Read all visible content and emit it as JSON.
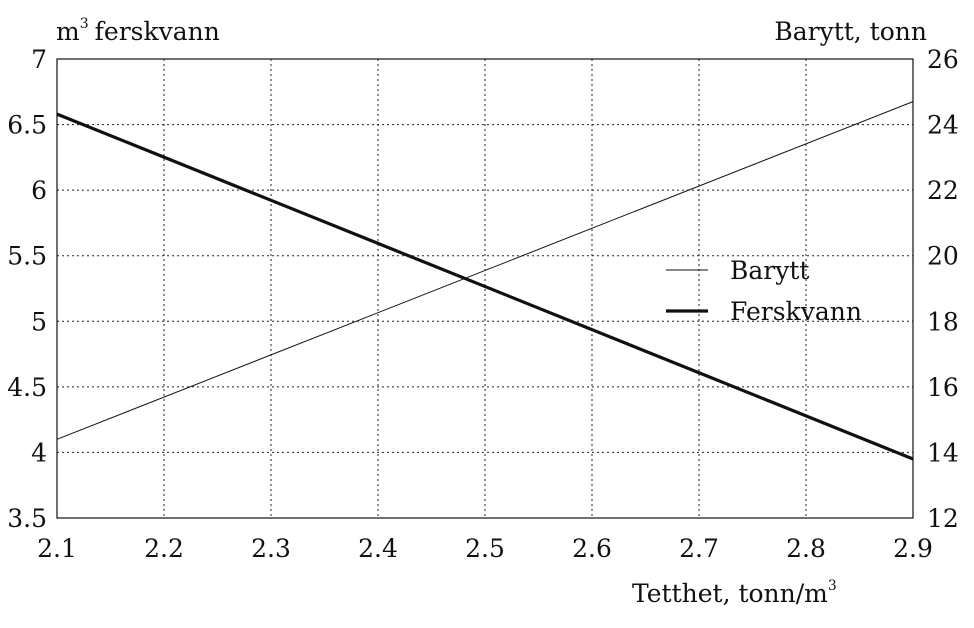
{
  "chart_data": {
    "type": "line",
    "xlabel": "Tetthet, tonn/m",
    "xlabel_superscript": "3",
    "ylabel_left": "ferskvann",
    "ylabel_left_prefix": "m",
    "ylabel_left_superscript": "3",
    "ylabel_right": "Barytt, tonn",
    "xlim": [
      2.1,
      2.9
    ],
    "ylim_left": [
      3.5,
      7
    ],
    "ylim_right": [
      12,
      26
    ],
    "x_ticks": [
      "2.1",
      "2.2",
      "2.3",
      "2.4",
      "2.5",
      "2.6",
      "2.7",
      "2.8",
      "2.9"
    ],
    "y_left_ticks": [
      "3.5",
      "4",
      "4.5",
      "5",
      "5.5",
      "6",
      "6.5",
      "7"
    ],
    "y_right_ticks": [
      "12",
      "14",
      "16",
      "18",
      "20",
      "22",
      "24",
      "26"
    ],
    "grid": true,
    "legend_position": "right-center",
    "series": [
      {
        "name": "Barytt",
        "axis": "right",
        "line_style": "thin",
        "color": "#111111",
        "x": [
          2.1,
          2.9
        ],
        "y": [
          14.4,
          24.7
        ]
      },
      {
        "name": "Ferskvann",
        "axis": "left",
        "line_style": "thick",
        "color": "#111111",
        "x": [
          2.1,
          2.9
        ],
        "y": [
          6.58,
          3.95
        ]
      }
    ]
  }
}
